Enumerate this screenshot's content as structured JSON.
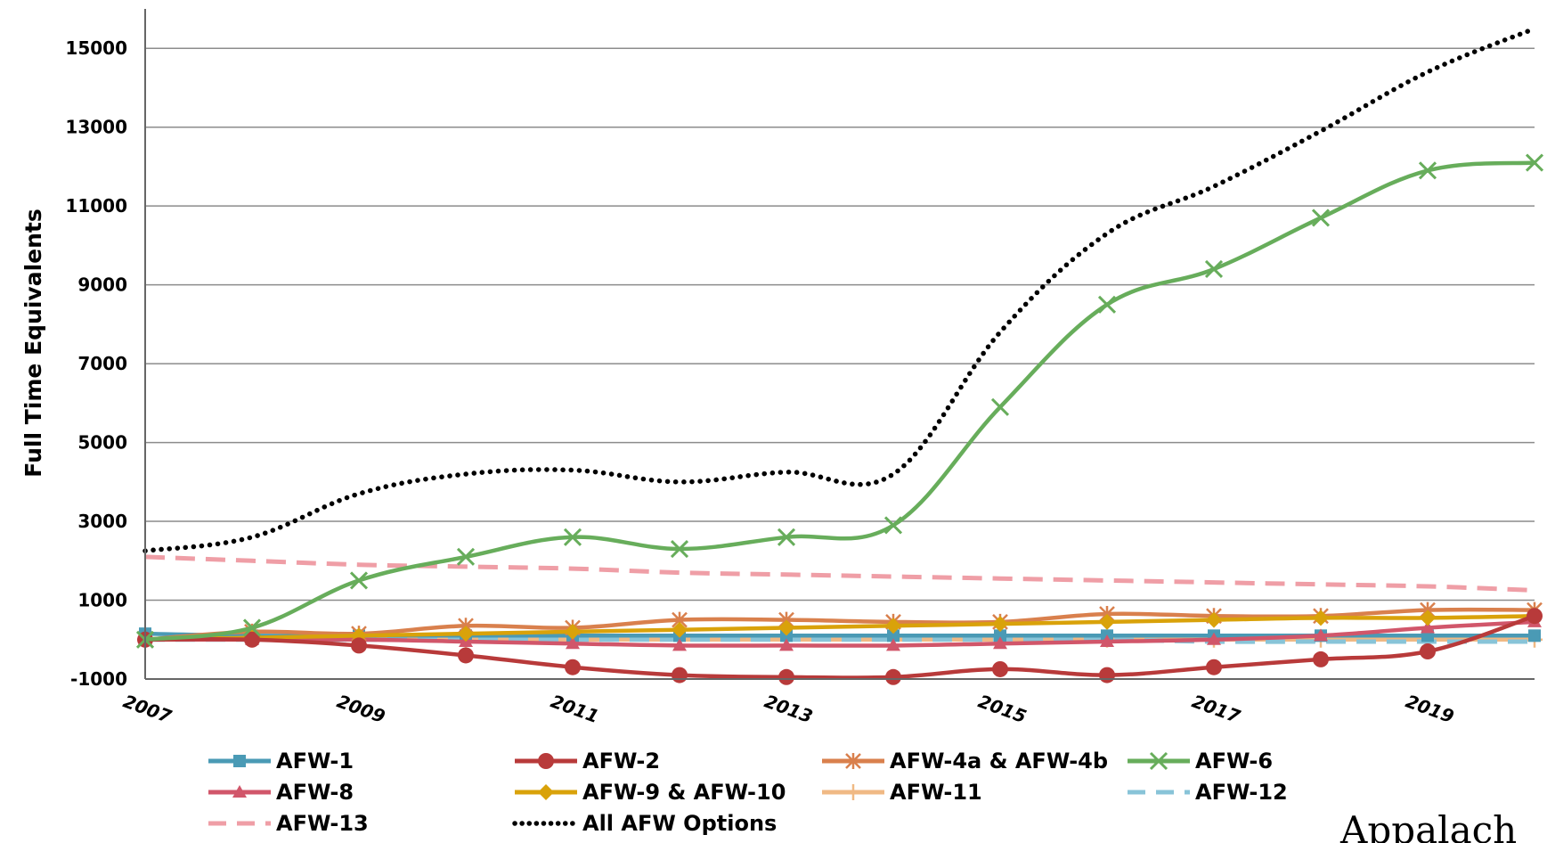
{
  "chart_data": {
    "type": "line",
    "ylabel": "Full Time Equivalents",
    "xlabel": "",
    "title": "",
    "x": [
      2007,
      2008,
      2009,
      2010,
      2011,
      2012,
      2013,
      2014,
      2015,
      2016,
      2017,
      2018,
      2019,
      2020
    ],
    "x_tick_labels": [
      "2007",
      "2009",
      "2011",
      "2013",
      "2015",
      "2017",
      "2019"
    ],
    "x_ticks": [
      2007,
      2009,
      2011,
      2013,
      2015,
      2017,
      2019
    ],
    "y_ticks": [
      -1000,
      1000,
      3000,
      5000,
      7000,
      9000,
      11000,
      13000,
      15000
    ],
    "y_tick_labels": [
      "-1000",
      "1000",
      "3000",
      "5000",
      "7000",
      "9000",
      "11000",
      "13000",
      "15000"
    ],
    "ylim": [
      -1000,
      16000
    ],
    "xlim": [
      2007,
      2020
    ],
    "grid": "horizontal",
    "legend_position": "bottom",
    "series": [
      {
        "name": "AFW-1",
        "color": "#4a9ab5",
        "dash": "solid",
        "marker": "square",
        "values": [
          150,
          100,
          100,
          100,
          100,
          100,
          100,
          100,
          100,
          100,
          100,
          100,
          100,
          100
        ]
      },
      {
        "name": "AFW-2",
        "color": "#b83a3a",
        "dash": "solid",
        "marker": "circle",
        "values": [
          0,
          0,
          -150,
          -400,
          -700,
          -900,
          -950,
          -950,
          -750,
          -900,
          -700,
          -500,
          -300,
          600
        ]
      },
      {
        "name": "AFW-4a & AFW-4b",
        "color": "#d9804d",
        "dash": "solid",
        "marker": "asterisk",
        "values": [
          0,
          200,
          150,
          350,
          300,
          500,
          500,
          450,
          450,
          650,
          600,
          600,
          750,
          750
        ]
      },
      {
        "name": "AFW-6",
        "color": "#67ad5b",
        "dash": "solid",
        "marker": "x",
        "values": [
          0,
          300,
          1500,
          2100,
          2600,
          2300,
          2600,
          2900,
          5900,
          8500,
          9400,
          10700,
          11900,
          12100
        ]
      },
      {
        "name": "AFW-8",
        "color": "#d1566a",
        "dash": "solid",
        "marker": "triangle",
        "values": [
          0,
          0,
          0,
          -50,
          -100,
          -150,
          -150,
          -150,
          -100,
          -50,
          0,
          100,
          300,
          450
        ]
      },
      {
        "name": "AFW-9 & AFW-10",
        "color": "#d9a20a",
        "dash": "solid",
        "marker": "diamond",
        "values": [
          0,
          50,
          100,
          150,
          200,
          250,
          300,
          350,
          400,
          450,
          500,
          550,
          550,
          600
        ]
      },
      {
        "name": "AFW-11",
        "color": "#f0b984",
        "dash": "solid",
        "marker": "plus",
        "values": [
          0,
          0,
          0,
          0,
          0,
          0,
          0,
          0,
          0,
          0,
          0,
          0,
          0,
          0
        ]
      },
      {
        "name": "AFW-12",
        "color": "#88c4d8",
        "dash": "dash",
        "marker": "none",
        "values": [
          0,
          0,
          0,
          0,
          0,
          0,
          0,
          0,
          0,
          0,
          -50,
          -50,
          -50,
          -50
        ]
      },
      {
        "name": "AFW-13",
        "color": "#ef9ea6",
        "dash": "dash",
        "marker": "none",
        "values": [
          2100,
          2000,
          1900,
          1850,
          1800,
          1700,
          1650,
          1600,
          1550,
          1500,
          1450,
          1400,
          1350,
          1250
        ]
      },
      {
        "name": "All AFW Options",
        "color": "#000000",
        "dash": "dot",
        "marker": "none",
        "values": [
          2250,
          2600,
          3700,
          4200,
          4300,
          4000,
          4250,
          4200,
          7800,
          10300,
          11500,
          12900,
          14400,
          15500
        ]
      }
    ]
  },
  "watermark_text": "Appalach"
}
